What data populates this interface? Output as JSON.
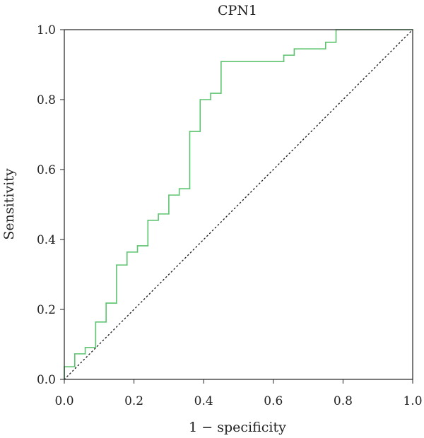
{
  "chart_data": {
    "type": "line",
    "title": "CPN1",
    "xlabel": "1 − specificity",
    "ylabel": "Sensitivity",
    "xlim": [
      0,
      1
    ],
    "ylim": [
      0,
      1
    ],
    "x_ticks": [
      "0.0",
      "0.2",
      "0.4",
      "0.6",
      "0.8",
      "1.0"
    ],
    "y_ticks": [
      "0.0",
      "0.2",
      "0.4",
      "0.6",
      "0.8",
      "1.0"
    ],
    "grid": false,
    "legend": "none",
    "colors": {
      "roc": "#5cc46f",
      "reference": "#222222",
      "frame": "#222222"
    },
    "series": [
      {
        "style": "step",
        "points": [
          [
            0.0,
            0.0
          ],
          [
            0.0,
            0.036
          ],
          [
            0.03,
            0.036
          ],
          [
            0.03,
            0.073
          ],
          [
            0.06,
            0.073
          ],
          [
            0.06,
            0.091
          ],
          [
            0.09,
            0.091
          ],
          [
            0.09,
            0.164
          ],
          [
            0.12,
            0.164
          ],
          [
            0.12,
            0.218
          ],
          [
            0.15,
            0.218
          ],
          [
            0.15,
            0.327
          ],
          [
            0.18,
            0.327
          ],
          [
            0.18,
            0.364
          ],
          [
            0.21,
            0.364
          ],
          [
            0.21,
            0.382
          ],
          [
            0.24,
            0.382
          ],
          [
            0.24,
            0.455
          ],
          [
            0.27,
            0.455
          ],
          [
            0.27,
            0.473
          ],
          [
            0.3,
            0.473
          ],
          [
            0.3,
            0.527
          ],
          [
            0.33,
            0.527
          ],
          [
            0.33,
            0.545
          ],
          [
            0.36,
            0.545
          ],
          [
            0.36,
            0.709
          ],
          [
            0.39,
            0.709
          ],
          [
            0.39,
            0.8
          ],
          [
            0.42,
            0.8
          ],
          [
            0.42,
            0.818
          ],
          [
            0.45,
            0.818
          ],
          [
            0.45,
            0.909
          ],
          [
            0.63,
            0.909
          ],
          [
            0.63,
            0.927
          ],
          [
            0.66,
            0.927
          ],
          [
            0.66,
            0.945
          ],
          [
            0.75,
            0.945
          ],
          [
            0.75,
            0.964
          ],
          [
            0.78,
            0.964
          ],
          [
            0.78,
            1.0
          ],
          [
            1.0,
            1.0
          ]
        ]
      },
      {
        "style": "dotted",
        "points": [
          [
            0,
            0
          ],
          [
            1,
            1
          ]
        ]
      }
    ]
  }
}
